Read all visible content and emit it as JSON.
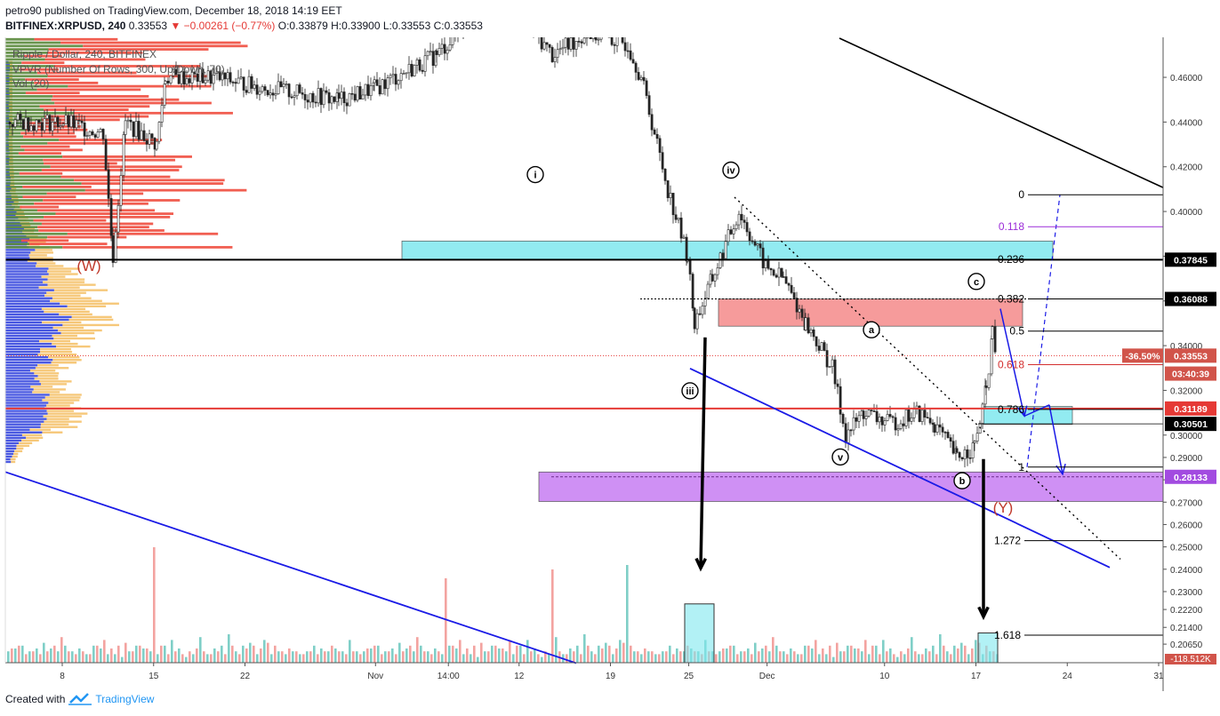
{
  "header": {
    "line1": "petro90 published on TradingView.com, December 18, 2018 14:19 EET",
    "symbol": "BITFINEX:XRPUSD, 240",
    "last": "0.33553",
    "change": "▼ −0.00261 (−0.77%)",
    "ohlc": "O:0.33879 H:0.33900 L:0.33553 C:0.33553"
  },
  "legend": {
    "line1": "Ripple / Dollar, 240, BITFINEX",
    "line2": "VPVR (Number Of Rows, 300, Up/Down, 70)",
    "line3": "Vol (20)"
  },
  "footer": {
    "created": "Created with",
    "brand": "TradingView"
  },
  "colors": {
    "up": "#26a69a",
    "down": "#ef5350",
    "trend": "#1a1ae6",
    "resistance": "#e53935",
    "zone_cyan": "#7fe8ef",
    "zone_red": "#f48a8a",
    "zone_purple": "#c77cf2",
    "vol_up": "#7fcfc7",
    "vol_down": "#f3a3a0"
  },
  "chart_data": {
    "type": "candlestick",
    "symbol": "BITFINEX:XRPUSD",
    "interval": "240",
    "ylim": [
      0.1982,
      0.4779
    ],
    "yticks": [
      "0.46000",
      "0.44000",
      "0.42000",
      "0.40000",
      "0.38000",
      "0.36000",
      "0.34000",
      "0.32000",
      "0.30000",
      "0.29000",
      "0.28000",
      "0.27000",
      "0.26000",
      "0.25000",
      "0.24000",
      "0.23000",
      "0.22200",
      "0.21400",
      "0.20650"
    ],
    "xticks": [
      {
        "label": "8",
        "date": "2018-10-08"
      },
      {
        "label": "15",
        "date": "2018-10-15"
      },
      {
        "label": "22",
        "date": "2018-10-22"
      },
      {
        "label": "Nov",
        "date": "2018-11-01"
      },
      {
        "label": "14:00",
        "date": "2018-11-06 14:00"
      },
      {
        "label": "12",
        "date": "2018-11-12"
      },
      {
        "label": "19",
        "date": "2018-11-19"
      },
      {
        "label": "25",
        "date": "2018-11-25"
      },
      {
        "label": "Dec",
        "date": "2018-12-01"
      },
      {
        "label": "10",
        "date": "2018-12-10"
      },
      {
        "label": "17",
        "date": "2018-12-17"
      },
      {
        "label": "24",
        "date": "2018-12-24"
      },
      {
        "label": "31",
        "date": "2018-12-31"
      }
    ],
    "price_tags": [
      {
        "label": "0.37845",
        "value": 0.37845,
        "style": "black"
      },
      {
        "label": "0.36088",
        "value": 0.36088,
        "style": "black"
      },
      {
        "label": "-36.50%",
        "value": 0.33553,
        "style": "red"
      },
      {
        "label": "0.33553",
        "value": 0.33553,
        "style": "red"
      },
      {
        "label": "03:40:39",
        "value": 0.3275,
        "style": "red"
      },
      {
        "label": "0.31189",
        "value": 0.31189,
        "style": "redline"
      },
      {
        "label": "0.30501",
        "value": 0.30501,
        "style": "black"
      },
      {
        "label": "0.28133",
        "value": 0.28133,
        "style": "purple"
      }
    ],
    "bottom_tag": "-118.512K",
    "fib_levels": [
      {
        "label": "0",
        "value": 0.4075
      },
      {
        "label": "0.118",
        "value": 0.3932
      },
      {
        "label": "0.236",
        "value": 0.3785
      },
      {
        "label": "0.382",
        "value": 0.3609
      },
      {
        "label": "0.5",
        "value": 0.3465
      },
      {
        "label": "0.618",
        "value": 0.3315
      },
      {
        "label": "0.786",
        "value": 0.3115
      },
      {
        "label": "1",
        "value": 0.2857
      },
      {
        "label": "1.272",
        "value": 0.2528
      },
      {
        "label": "1.618",
        "value": 0.2105
      }
    ],
    "wave_labels": [
      "i",
      "iv",
      "iii",
      "v",
      "a",
      "b",
      "c"
    ],
    "corrective_labels": [
      "(W)",
      "(Y)"
    ],
    "horizontal_lines": [
      {
        "value": 0.37845,
        "color": "black"
      },
      {
        "value": 0.31189,
        "color": "red"
      }
    ],
    "zones": [
      {
        "name": "cyan-upper",
        "from": 0.3785,
        "to": 0.3868
      },
      {
        "name": "red",
        "from": 0.3487,
        "to": 0.3609
      },
      {
        "name": "cyan-lower",
        "from": 0.3048,
        "to": 0.3128
      },
      {
        "name": "purple",
        "from": 0.2703,
        "to": 0.2835
      }
    ],
    "volume_bars_up": [
      4,
      3,
      5,
      2,
      6,
      3,
      4,
      8,
      5,
      3,
      7,
      2,
      5,
      9,
      4,
      3,
      6,
      12,
      4,
      3,
      5,
      8,
      3,
      4,
      6,
      2,
      5,
      7,
      3,
      4,
      3,
      5,
      2,
      8,
      4,
      3,
      6,
      15,
      5,
      3,
      4,
      7,
      3,
      5,
      6,
      4,
      8,
      3,
      5,
      4,
      2,
      6,
      3,
      5,
      9,
      4,
      3,
      7,
      5,
      4,
      6,
      3,
      10,
      5,
      4,
      3,
      6,
      4,
      7,
      5,
      3,
      4,
      8,
      5,
      3,
      6,
      4,
      5,
      3,
      9,
      4,
      6,
      3,
      5,
      4,
      2,
      6,
      3,
      5,
      7,
      4,
      3,
      5,
      6,
      4,
      3,
      8,
      5,
      4,
      6
    ],
    "volume_bars_down": [
      3,
      5,
      2,
      6,
      4,
      3,
      7,
      4,
      5,
      3,
      8,
      4,
      3,
      6,
      5,
      9,
      3,
      4,
      6,
      3,
      5,
      4,
      7,
      3,
      5,
      6,
      4,
      8,
      3,
      5,
      4,
      6,
      3,
      7,
      5,
      4,
      3,
      6,
      4,
      5,
      3,
      8,
      4,
      6,
      5,
      3,
      7,
      4,
      5,
      3,
      6,
      4,
      3,
      5,
      7,
      4,
      6,
      3,
      5,
      4,
      8,
      3,
      5,
      6,
      4,
      3,
      7,
      5,
      4,
      6,
      3,
      5,
      4,
      7,
      3,
      6,
      5,
      4,
      3,
      5,
      6,
      4,
      7,
      3,
      5,
      4,
      6,
      3,
      5,
      4,
      3,
      6,
      5,
      4,
      7,
      3,
      5,
      4,
      6,
      3
    ]
  }
}
